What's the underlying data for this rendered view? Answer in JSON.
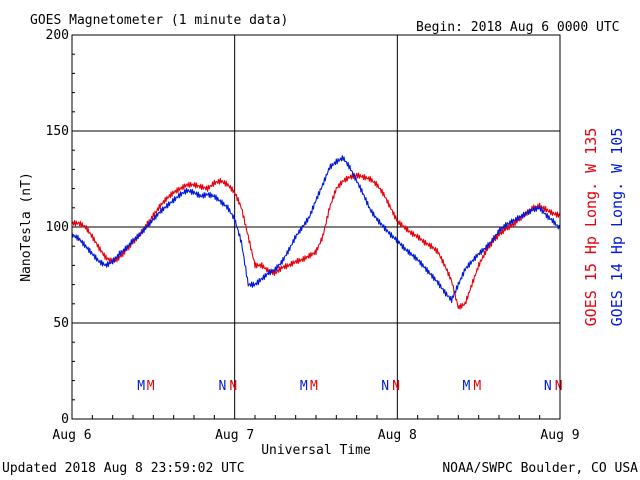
{
  "title": "GOES Magnetometer (1 minute data)",
  "begin": "Begin:  2018 Aug 6 0000 UTC",
  "updated": "Updated 2018 Aug  8 23:59:02 UTC",
  "credit": "NOAA/SWPC Boulder, CO USA",
  "colors": {
    "goes15": "#e8000b",
    "goes14": "#0019d8"
  },
  "chart_data": {
    "type": "line",
    "ylabel": "NanoTesla (nT)",
    "xlabel": "Universal Time",
    "ylim": [
      0,
      200
    ],
    "xlim": [
      0,
      72
    ],
    "grid": true,
    "y_ticks": [
      "0",
      "50",
      "100",
      "150",
      "200"
    ],
    "x_ticks": [
      {
        "x": 0,
        "label": "Aug 6"
      },
      {
        "x": 24,
        "label": "Aug 7"
      },
      {
        "x": 48,
        "label": "Aug 8"
      },
      {
        "x": 72,
        "label": "Aug 9"
      }
    ],
    "series": [
      {
        "name": "GOES 15 Hp  Long. W 135",
        "color": "#e8000b",
        "x": [
          0,
          1,
          2,
          3,
          4,
          5,
          6,
          7,
          8,
          9,
          10,
          11,
          12,
          13,
          14,
          15,
          16,
          17,
          18,
          19,
          20,
          21,
          22,
          23,
          24,
          25,
          26,
          27,
          28,
          29,
          30,
          31,
          32,
          33,
          34,
          35,
          36,
          37,
          38,
          39,
          40,
          41,
          42,
          43,
          44,
          45,
          46,
          47,
          48,
          49,
          50,
          51,
          52,
          53,
          54,
          55,
          56,
          57,
          58,
          59,
          60,
          61,
          62,
          63,
          64,
          65,
          66,
          67,
          68,
          69,
          70,
          71,
          72
        ],
        "y": [
          102,
          102,
          100,
          95,
          89,
          84,
          82,
          84,
          88,
          92,
          96,
          101,
          106,
          111,
          115,
          118,
          120,
          122,
          122,
          121,
          120,
          123,
          124,
          122,
          118,
          110,
          95,
          80,
          80,
          77,
          76,
          79,
          80,
          82,
          83,
          85,
          87,
          95,
          110,
          120,
          124,
          126,
          127,
          126,
          125,
          122,
          117,
          110,
          103,
          100,
          97,
          95,
          92,
          90,
          87,
          80,
          72,
          58,
          60,
          70,
          80,
          87,
          92,
          96,
          99,
          101,
          104,
          107,
          110,
          111,
          109,
          107,
          106
        ]
      },
      {
        "name": "GOES 14 Hp  Long. W 105",
        "color": "#0019d8",
        "x": [
          0,
          1,
          2,
          3,
          4,
          5,
          6,
          7,
          8,
          9,
          10,
          11,
          12,
          13,
          14,
          15,
          16,
          17,
          18,
          19,
          20,
          21,
          22,
          23,
          24,
          25,
          26,
          27,
          28,
          29,
          30,
          31,
          32,
          33,
          34,
          35,
          36,
          37,
          38,
          39,
          40,
          41,
          42,
          43,
          44,
          45,
          46,
          47,
          48,
          49,
          50,
          51,
          52,
          53,
          54,
          55,
          56,
          57,
          58,
          59,
          60,
          61,
          62,
          63,
          64,
          65,
          66,
          67,
          68,
          69,
          70,
          71,
          72
        ],
        "y": [
          96,
          94,
          90,
          86,
          82,
          80,
          82,
          86,
          89,
          93,
          96,
          100,
          104,
          108,
          111,
          114,
          117,
          119,
          118,
          116,
          117,
          116,
          113,
          110,
          104,
          92,
          70,
          70,
          73,
          76,
          78,
          82,
          88,
          95,
          100,
          105,
          114,
          122,
          131,
          134,
          136,
          131,
          124,
          117,
          109,
          104,
          100,
          96,
          93,
          89,
          86,
          83,
          79,
          75,
          71,
          66,
          62,
          70,
          78,
          82,
          86,
          89,
          93,
          98,
          101,
          103,
          105,
          107,
          109,
          110,
          106,
          103,
          99
        ]
      }
    ],
    "markers": [
      {
        "label": "M",
        "x": 10.2,
        "series": 1
      },
      {
        "label": "M",
        "x": 11.6,
        "series": 0
      },
      {
        "label": "N",
        "x": 22.2,
        "series": 1
      },
      {
        "label": "N",
        "x": 23.8,
        "series": 0
      },
      {
        "label": "M",
        "x": 34.2,
        "series": 1
      },
      {
        "label": "M",
        "x": 35.7,
        "series": 0
      },
      {
        "label": "N",
        "x": 46.2,
        "series": 1
      },
      {
        "label": "N",
        "x": 47.8,
        "series": 0
      },
      {
        "label": "M",
        "x": 58.2,
        "series": 1
      },
      {
        "label": "M",
        "x": 59.8,
        "series": 0
      },
      {
        "label": "N",
        "x": 70.2,
        "series": 1
      },
      {
        "label": "N",
        "x": 71.8,
        "series": 0
      }
    ]
  }
}
